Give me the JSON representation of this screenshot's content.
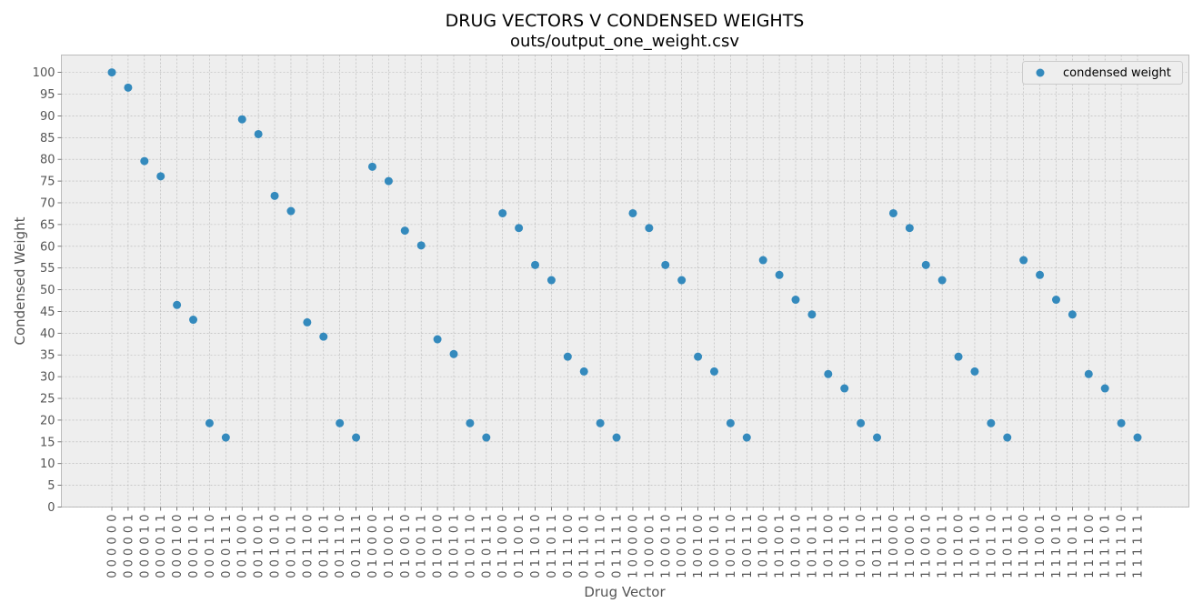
{
  "chart_data": {
    "type": "scatter",
    "title": "DRUG VECTORS V CONDENSED WEIGHTS",
    "subtitle": "outs/output_one_weight.csv",
    "xlabel": "Drug Vector",
    "ylabel": "Condensed Weight",
    "ylim": [
      0,
      104
    ],
    "yticks": [
      0,
      5,
      10,
      15,
      20,
      25,
      30,
      35,
      40,
      45,
      50,
      55,
      60,
      65,
      70,
      75,
      80,
      85,
      90,
      95,
      100
    ],
    "grid": true,
    "legend_position": "top-right",
    "series": [
      {
        "name": "condensed weight",
        "color": "#348ABD",
        "categories": [
          "0 0 0 0 0 0",
          "0 0 0 0 0 1",
          "0 0 0 0 1 0",
          "0 0 0 0 1 1",
          "0 0 0 1 0 0",
          "0 0 0 1 0 1",
          "0 0 0 1 1 0",
          "0 0 0 1 1 1",
          "0 0 1 0 0 0",
          "0 0 1 0 0 1",
          "0 0 1 0 1 0",
          "0 0 1 0 1 1",
          "0 0 1 1 0 0",
          "0 0 1 1 0 1",
          "0 0 1 1 1 0",
          "0 0 1 1 1 1",
          "0 1 0 0 0 0",
          "0 1 0 0 0 1",
          "0 1 0 0 1 0",
          "0 1 0 0 1 1",
          "0 1 0 1 0 0",
          "0 1 0 1 0 1",
          "0 1 0 1 1 0",
          "0 1 0 1 1 1",
          "0 1 1 0 0 0",
          "0 1 1 0 0 1",
          "0 1 1 0 1 0",
          "0 1 1 0 1 1",
          "0 1 1 1 0 0",
          "0 1 1 1 0 1",
          "0 1 1 1 1 0",
          "0 1 1 1 1 1",
          "1 0 0 0 0 0",
          "1 0 0 0 0 1",
          "1 0 0 0 1 0",
          "1 0 0 0 1 1",
          "1 0 0 1 0 0",
          "1 0 0 1 0 1",
          "1 0 0 1 1 0",
          "1 0 0 1 1 1",
          "1 0 1 0 0 0",
          "1 0 1 0 0 1",
          "1 0 1 0 1 0",
          "1 0 1 0 1 1",
          "1 0 1 1 0 0",
          "1 0 1 1 0 1",
          "1 0 1 1 1 0",
          "1 0 1 1 1 1",
          "1 1 0 0 0 0",
          "1 1 0 0 0 1",
          "1 1 0 0 1 0",
          "1 1 0 0 1 1",
          "1 1 0 1 0 0",
          "1 1 0 1 0 1",
          "1 1 0 1 1 0",
          "1 1 0 1 1 1",
          "1 1 1 0 0 0",
          "1 1 1 0 0 1",
          "1 1 1 0 1 0",
          "1 1 1 0 1 1",
          "1 1 1 1 0 0",
          "1 1 1 1 0 1",
          "1 1 1 1 1 0",
          "1 1 1 1 1 1"
        ],
        "values": [
          100.0,
          96.5,
          79.6,
          76.1,
          46.5,
          43.1,
          19.3,
          16.0,
          89.2,
          85.8,
          71.6,
          68.1,
          42.5,
          39.2,
          19.3,
          16.0,
          78.3,
          75.0,
          63.6,
          60.2,
          38.6,
          35.2,
          19.3,
          16.0,
          67.6,
          64.2,
          55.7,
          52.2,
          34.6,
          31.2,
          19.3,
          16.0,
          67.6,
          64.2,
          55.7,
          52.2,
          34.6,
          31.2,
          19.3,
          16.0,
          56.8,
          53.4,
          47.7,
          44.3,
          30.6,
          27.3,
          19.3,
          16.0,
          67.6,
          64.2,
          55.7,
          52.2,
          34.6,
          31.2,
          19.3,
          16.0,
          56.8,
          53.4,
          47.7,
          44.3,
          30.6,
          27.3,
          19.3,
          16.0
        ]
      }
    ]
  }
}
